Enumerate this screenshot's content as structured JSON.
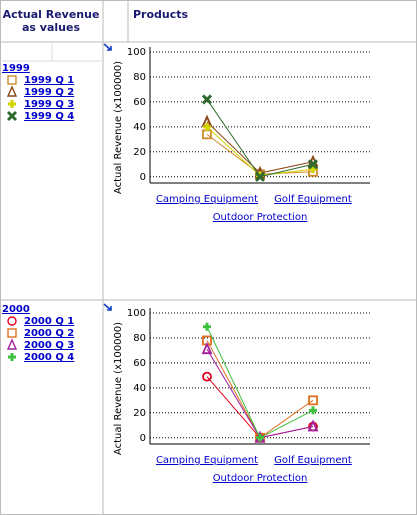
{
  "header": {
    "measure": [
      "Actual Revenue",
      "as values"
    ],
    "products": "Products"
  },
  "chart_data": [
    {
      "type": "line",
      "group": "1999",
      "y_label": "Actual Revenue (x100000)",
      "categories": [
        "Camping Equipment",
        "Outdoor Protection",
        "Golf Equipment"
      ],
      "ylim": [
        -5,
        100
      ],
      "yticks": [
        0,
        20,
        40,
        60,
        80,
        100
      ],
      "grid": true,
      "series": [
        {
          "name": "1999 Q 1",
          "color": "#d08a2a",
          "marker": "square",
          "values": [
            34,
            2,
            4
          ]
        },
        {
          "name": "1999 Q 2",
          "color": "#8b4513",
          "marker": "triangle",
          "values": [
            44,
            3,
            12
          ]
        },
        {
          "name": "1999 Q 3",
          "color": "#d4d400",
          "marker": "plus",
          "values": [
            40,
            1,
            6
          ]
        },
        {
          "name": "1999 Q 4",
          "color": "#2e6b2e",
          "marker": "x",
          "values": [
            62,
            0,
            10
          ]
        }
      ]
    },
    {
      "type": "line",
      "group": "2000",
      "y_label": "Actual Revenue (x100000)",
      "categories": [
        "Camping Equipment",
        "Outdoor Protection",
        "Golf Equipment"
      ],
      "ylim": [
        -5,
        100
      ],
      "yticks": [
        0,
        20,
        40,
        60,
        80,
        100
      ],
      "grid": true,
      "series": [
        {
          "name": "2000 Q 1",
          "color": "#e0001b",
          "marker": "circle",
          "values": [
            49,
            0,
            9
          ]
        },
        {
          "name": "2000 Q 2",
          "color": "#e07020",
          "marker": "square",
          "values": [
            78,
            0,
            30
          ]
        },
        {
          "name": "2000 Q 3",
          "color": "#a020a0",
          "marker": "triangle",
          "values": [
            71,
            0,
            9
          ]
        },
        {
          "name": "2000 Q 4",
          "color": "#40c040",
          "marker": "plus",
          "values": [
            89,
            0,
            22
          ]
        }
      ]
    }
  ]
}
